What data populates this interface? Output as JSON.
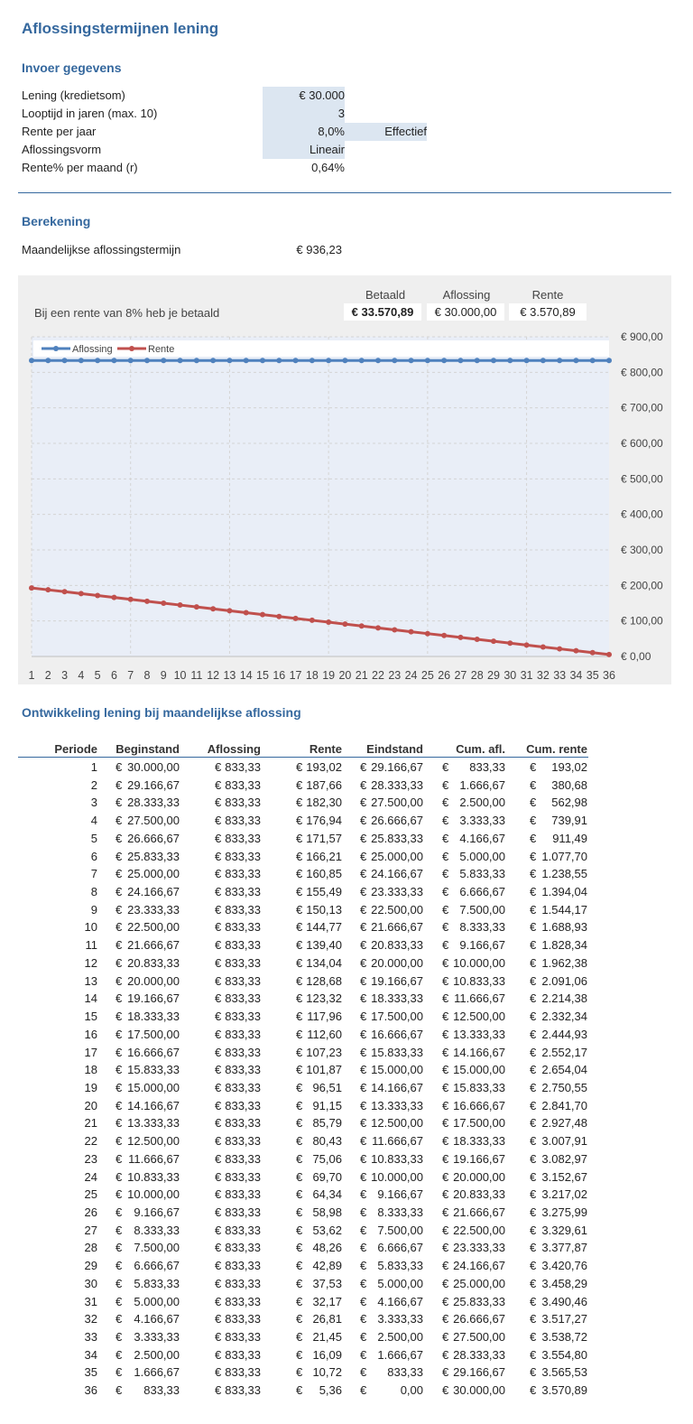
{
  "title": "Aflossingstermijnen lening",
  "input": {
    "heading": "Invoer gegevens",
    "rows": [
      {
        "label": "Lening (kredietsom)",
        "value": "€ 30.000"
      },
      {
        "label": "Looptijd in jaren (max. 10)",
        "value": "3"
      },
      {
        "label": "Rente per jaar",
        "value": "8,0%",
        "extra": "Effectief"
      },
      {
        "label": "Aflossingsvorm",
        "value": "Lineair"
      },
      {
        "label": "Rente% per maand (r)",
        "value": "0,64%"
      }
    ]
  },
  "calc": {
    "heading": "Berekening",
    "label": "Maandelijkse aflossingstermijn",
    "value": "€ 936,23"
  },
  "summary": {
    "text": "Bij een rente van 8% heb je betaald",
    "headers": [
      "Betaald",
      "Aflossing",
      "Rente"
    ],
    "values": [
      "€ 33.570,89",
      "€ 30.000,00",
      "€ 3.570,89"
    ]
  },
  "chart_data": {
    "type": "line",
    "x": [
      1,
      2,
      3,
      4,
      5,
      6,
      7,
      8,
      9,
      10,
      11,
      12,
      13,
      14,
      15,
      16,
      17,
      18,
      19,
      20,
      21,
      22,
      23,
      24,
      25,
      26,
      27,
      28,
      29,
      30,
      31,
      32,
      33,
      34,
      35,
      36
    ],
    "series": [
      {
        "name": "Aflossing",
        "color": "#4f81bd",
        "values": [
          833.33,
          833.33,
          833.33,
          833.33,
          833.33,
          833.33,
          833.33,
          833.33,
          833.33,
          833.33,
          833.33,
          833.33,
          833.33,
          833.33,
          833.33,
          833.33,
          833.33,
          833.33,
          833.33,
          833.33,
          833.33,
          833.33,
          833.33,
          833.33,
          833.33,
          833.33,
          833.33,
          833.33,
          833.33,
          833.33,
          833.33,
          833.33,
          833.33,
          833.33,
          833.33,
          833.33
        ]
      },
      {
        "name": "Rente",
        "color": "#c0504d",
        "values": [
          193.02,
          187.66,
          182.3,
          176.94,
          171.57,
          166.21,
          160.85,
          155.49,
          150.13,
          144.77,
          139.4,
          134.04,
          128.68,
          123.32,
          117.96,
          112.6,
          107.23,
          101.87,
          96.51,
          91.15,
          85.79,
          80.43,
          75.06,
          69.7,
          64.34,
          58.98,
          53.62,
          48.26,
          42.89,
          37.53,
          32.17,
          26.81,
          21.45,
          16.09,
          10.72,
          5.36
        ]
      }
    ],
    "ylim": [
      0,
      900
    ],
    "yticks": [
      "€ 0,00",
      "€ 100,00",
      "€ 200,00",
      "€ 300,00",
      "€ 400,00",
      "€ 500,00",
      "€ 600,00",
      "€ 700,00",
      "€ 800,00",
      "€ 900,00"
    ],
    "y_axis_position": "right",
    "grid": true,
    "legend_position": "top-left"
  },
  "table": {
    "heading": "Ontwikkeling lening bij maandelijkse aflossing",
    "headers": [
      "Periode",
      "Beginstand",
      "Aflossing",
      "Rente",
      "Eindstand",
      "Cum. afl.",
      "Cum. rente"
    ],
    "rows": [
      [
        "1",
        "30.000,00",
        "833,33",
        "193,02",
        "29.166,67",
        "833,33",
        "193,02"
      ],
      [
        "2",
        "29.166,67",
        "833,33",
        "187,66",
        "28.333,33",
        "1.666,67",
        "380,68"
      ],
      [
        "3",
        "28.333,33",
        "833,33",
        "182,30",
        "27.500,00",
        "2.500,00",
        "562,98"
      ],
      [
        "4",
        "27.500,00",
        "833,33",
        "176,94",
        "26.666,67",
        "3.333,33",
        "739,91"
      ],
      [
        "5",
        "26.666,67",
        "833,33",
        "171,57",
        "25.833,33",
        "4.166,67",
        "911,49"
      ],
      [
        "6",
        "25.833,33",
        "833,33",
        "166,21",
        "25.000,00",
        "5.000,00",
        "1.077,70"
      ],
      [
        "7",
        "25.000,00",
        "833,33",
        "160,85",
        "24.166,67",
        "5.833,33",
        "1.238,55"
      ],
      [
        "8",
        "24.166,67",
        "833,33",
        "155,49",
        "23.333,33",
        "6.666,67",
        "1.394,04"
      ],
      [
        "9",
        "23.333,33",
        "833,33",
        "150,13",
        "22.500,00",
        "7.500,00",
        "1.544,17"
      ],
      [
        "10",
        "22.500,00",
        "833,33",
        "144,77",
        "21.666,67",
        "8.333,33",
        "1.688,93"
      ],
      [
        "11",
        "21.666,67",
        "833,33",
        "139,40",
        "20.833,33",
        "9.166,67",
        "1.828,34"
      ],
      [
        "12",
        "20.833,33",
        "833,33",
        "134,04",
        "20.000,00",
        "10.000,00",
        "1.962,38"
      ],
      [
        "13",
        "20.000,00",
        "833,33",
        "128,68",
        "19.166,67",
        "10.833,33",
        "2.091,06"
      ],
      [
        "14",
        "19.166,67",
        "833,33",
        "123,32",
        "18.333,33",
        "11.666,67",
        "2.214,38"
      ],
      [
        "15",
        "18.333,33",
        "833,33",
        "117,96",
        "17.500,00",
        "12.500,00",
        "2.332,34"
      ],
      [
        "16",
        "17.500,00",
        "833,33",
        "112,60",
        "16.666,67",
        "13.333,33",
        "2.444,93"
      ],
      [
        "17",
        "16.666,67",
        "833,33",
        "107,23",
        "15.833,33",
        "14.166,67",
        "2.552,17"
      ],
      [
        "18",
        "15.833,33",
        "833,33",
        "101,87",
        "15.000,00",
        "15.000,00",
        "2.654,04"
      ],
      [
        "19",
        "15.000,00",
        "833,33",
        "96,51",
        "14.166,67",
        "15.833,33",
        "2.750,55"
      ],
      [
        "20",
        "14.166,67",
        "833,33",
        "91,15",
        "13.333,33",
        "16.666,67",
        "2.841,70"
      ],
      [
        "21",
        "13.333,33",
        "833,33",
        "85,79",
        "12.500,00",
        "17.500,00",
        "2.927,48"
      ],
      [
        "22",
        "12.500,00",
        "833,33",
        "80,43",
        "11.666,67",
        "18.333,33",
        "3.007,91"
      ],
      [
        "23",
        "11.666,67",
        "833,33",
        "75,06",
        "10.833,33",
        "19.166,67",
        "3.082,97"
      ],
      [
        "24",
        "10.833,33",
        "833,33",
        "69,70",
        "10.000,00",
        "20.000,00",
        "3.152,67"
      ],
      [
        "25",
        "10.000,00",
        "833,33",
        "64,34",
        "9.166,67",
        "20.833,33",
        "3.217,02"
      ],
      [
        "26",
        "9.166,67",
        "833,33",
        "58,98",
        "8.333,33",
        "21.666,67",
        "3.275,99"
      ],
      [
        "27",
        "8.333,33",
        "833,33",
        "53,62",
        "7.500,00",
        "22.500,00",
        "3.329,61"
      ],
      [
        "28",
        "7.500,00",
        "833,33",
        "48,26",
        "6.666,67",
        "23.333,33",
        "3.377,87"
      ],
      [
        "29",
        "6.666,67",
        "833,33",
        "42,89",
        "5.833,33",
        "24.166,67",
        "3.420,76"
      ],
      [
        "30",
        "5.833,33",
        "833,33",
        "37,53",
        "5.000,00",
        "25.000,00",
        "3.458,29"
      ],
      [
        "31",
        "5.000,00",
        "833,33",
        "32,17",
        "4.166,67",
        "25.833,33",
        "3.490,46"
      ],
      [
        "32",
        "4.166,67",
        "833,33",
        "26,81",
        "3.333,33",
        "26.666,67",
        "3.517,27"
      ],
      [
        "33",
        "3.333,33",
        "833,33",
        "21,45",
        "2.500,00",
        "27.500,00",
        "3.538,72"
      ],
      [
        "34",
        "2.500,00",
        "833,33",
        "16,09",
        "1.666,67",
        "28.333,33",
        "3.554,80"
      ],
      [
        "35",
        "1.666,67",
        "833,33",
        "10,72",
        "833,33",
        "29.166,67",
        "3.565,53"
      ],
      [
        "36",
        "833,33",
        "833,33",
        "5,36",
        "0,00",
        "30.000,00",
        "3.570,89"
      ]
    ]
  },
  "colors": {
    "accent": "#35689e",
    "input_fill": "#dce6f1",
    "panel": "#efefef",
    "plot_fill": "#e9eef7"
  }
}
